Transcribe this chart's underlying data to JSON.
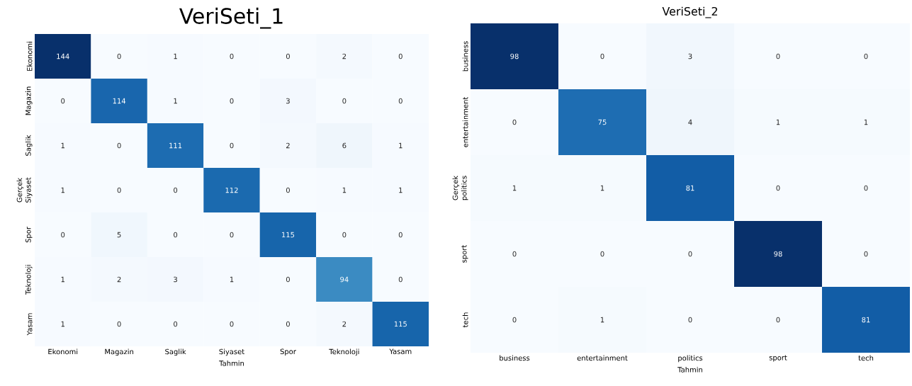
{
  "chart_data": [
    {
      "type": "heatmap",
      "title": "VeriSeti_1",
      "xlabel": "Tahmin",
      "ylabel": "Gerçek",
      "data_labels": true,
      "categories": [
        "Ekonomi",
        "Magazin",
        "Saglik",
        "Siyaset",
        "Spor",
        "Teknoloji",
        "Yasam"
      ],
      "y_categories": [
        "Ekonomi",
        "Magazin",
        "Saglik",
        "Siyaset",
        "Spor",
        "Teknoloji",
        "Yasam"
      ],
      "cells": [
        [
          144,
          0,
          1,
          0,
          0,
          2,
          0
        ],
        [
          0,
          114,
          1,
          0,
          3,
          0,
          0
        ],
        [
          1,
          0,
          111,
          0,
          2,
          6,
          1
        ],
        [
          1,
          0,
          0,
          112,
          0,
          1,
          1
        ],
        [
          0,
          5,
          0,
          0,
          115,
          0,
          0
        ],
        [
          1,
          2,
          3,
          1,
          0,
          94,
          0
        ],
        [
          1,
          0,
          0,
          0,
          0,
          2,
          115
        ]
      ]
    },
    {
      "type": "heatmap",
      "title": "VeriSeti_2",
      "xlabel": "Tahmin",
      "ylabel": "Gerçek",
      "data_labels": true,
      "categories": [
        "business",
        "entertainment",
        "politics",
        "sport",
        "tech"
      ],
      "y_categories": [
        "business",
        "entertainment",
        "politics",
        "sport",
        "tech"
      ],
      "cells": [
        [
          98,
          0,
          3,
          0,
          0
        ],
        [
          0,
          75,
          4,
          1,
          1
        ],
        [
          1,
          1,
          81,
          0,
          0
        ],
        [
          0,
          0,
          0,
          98,
          0
        ],
        [
          0,
          1,
          0,
          0,
          81
        ]
      ]
    }
  ]
}
